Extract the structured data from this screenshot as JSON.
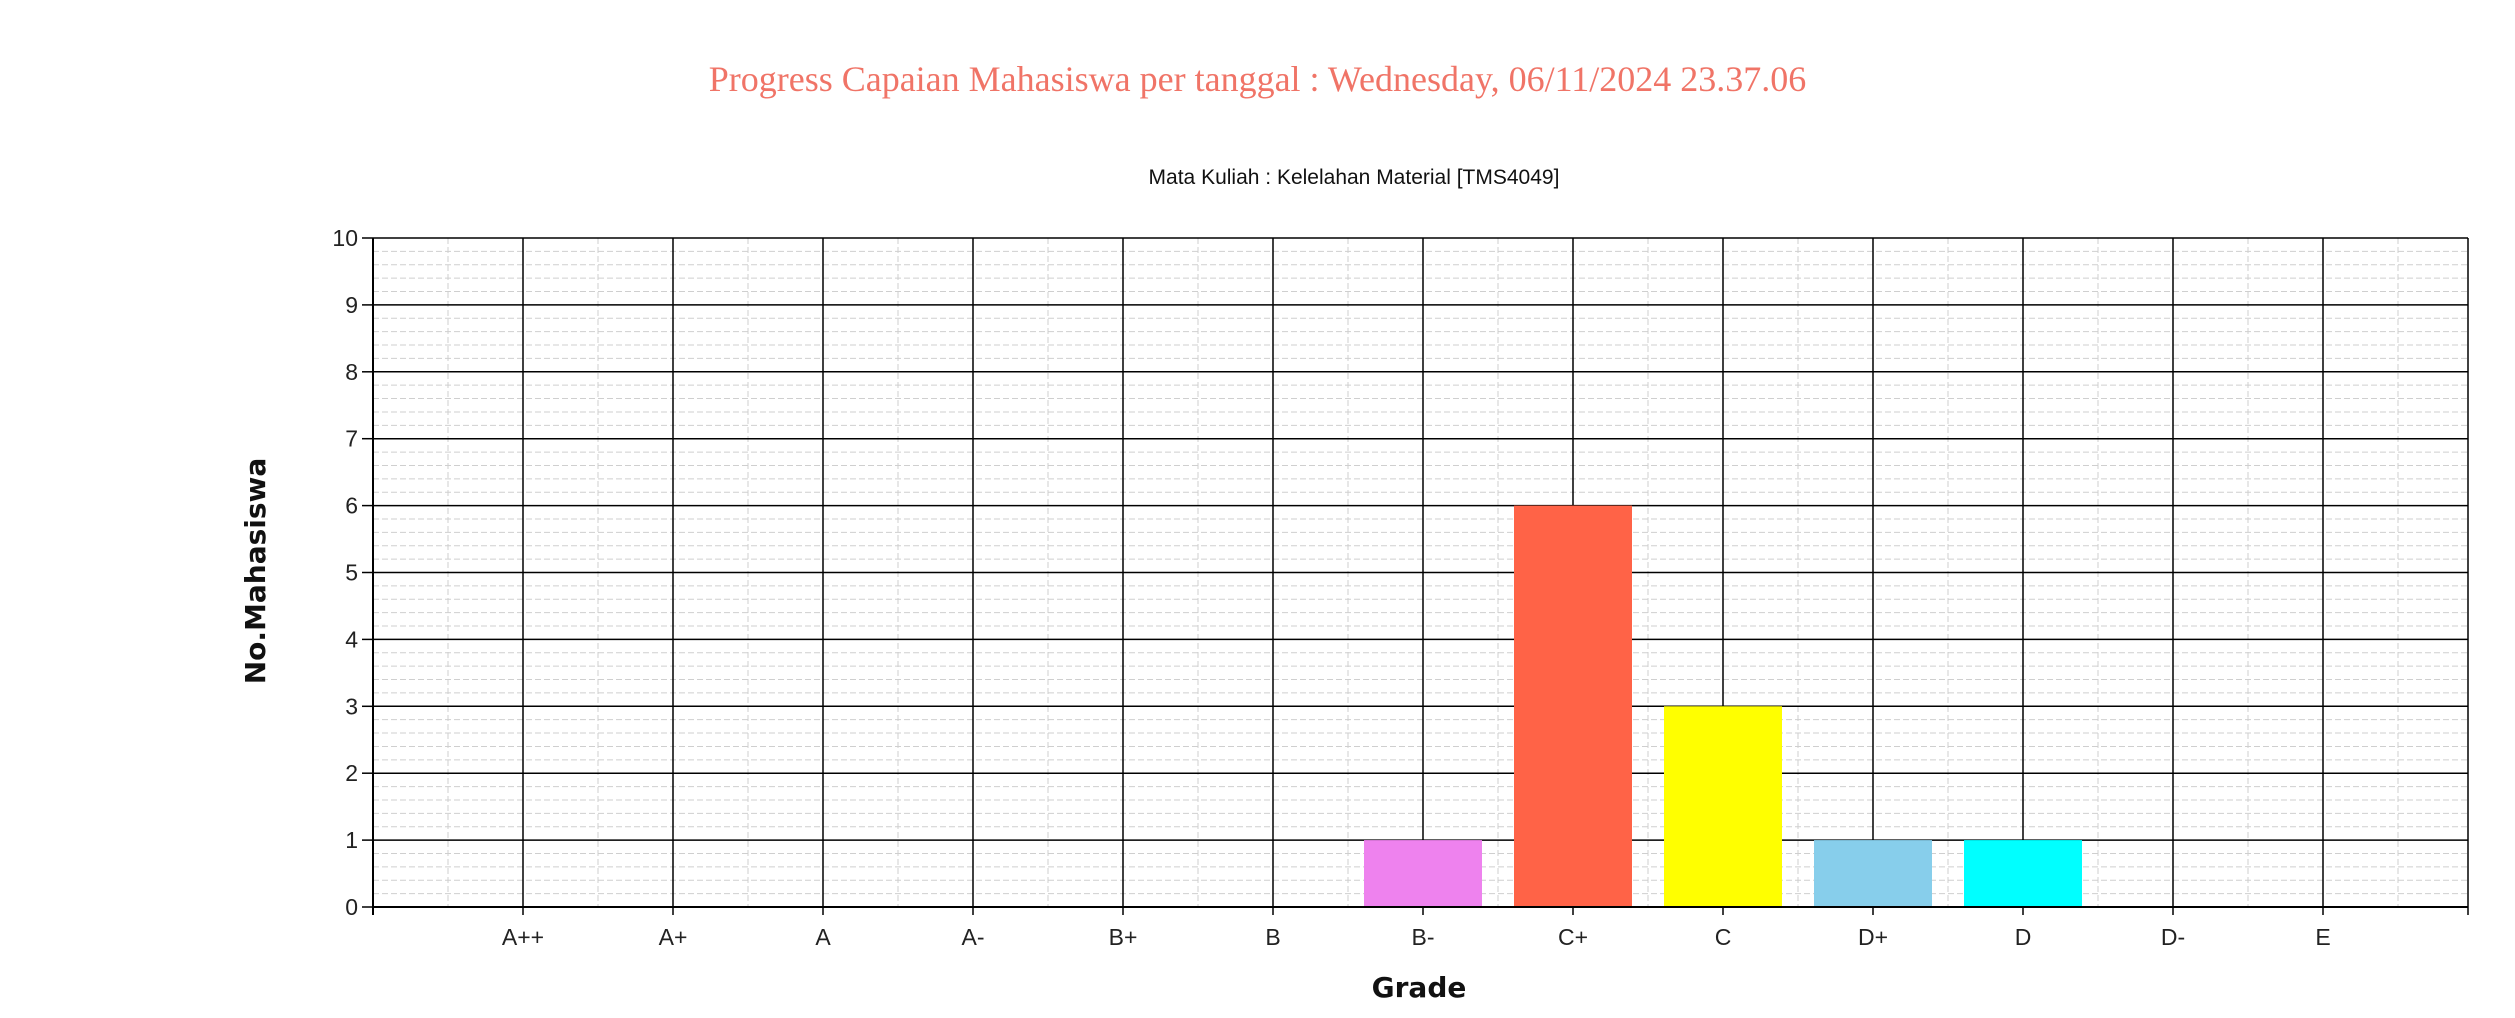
{
  "page": {
    "title": "Progress Capaian Mahasiswa per tanggal : Wednesday, 06/11/2024 23.37.06"
  },
  "chart_data": {
    "type": "bar",
    "title": "Mata Kuliah : Kelelahan Material [TMS4049]",
    "xlabel": "Grade",
    "ylabel": "No.Mahasiswa",
    "ylim": [
      0,
      10
    ],
    "yticks": [
      "0",
      "1",
      "2",
      "3",
      "4",
      "5",
      "6",
      "7",
      "8",
      "9",
      "10"
    ],
    "categories": [
      "A++",
      "A+",
      "A",
      "A-",
      "B+",
      "B",
      "B-",
      "C+",
      "C",
      "D+",
      "D",
      "D-",
      "E"
    ],
    "values": [
      0,
      0,
      0,
      0,
      0,
      0,
      1,
      6,
      3,
      1,
      1,
      0,
      0
    ],
    "colors": [
      "#ee82ee",
      "#ee82ee",
      "#ee82ee",
      "#ee82ee",
      "#ee82ee",
      "#ee82ee",
      "#ee82ee",
      "#ff6347",
      "#ffff00",
      "#87ceeb",
      "#00ffff",
      "#00ffff",
      "#00ffff"
    ],
    "grid": true,
    "legend": "none"
  }
}
